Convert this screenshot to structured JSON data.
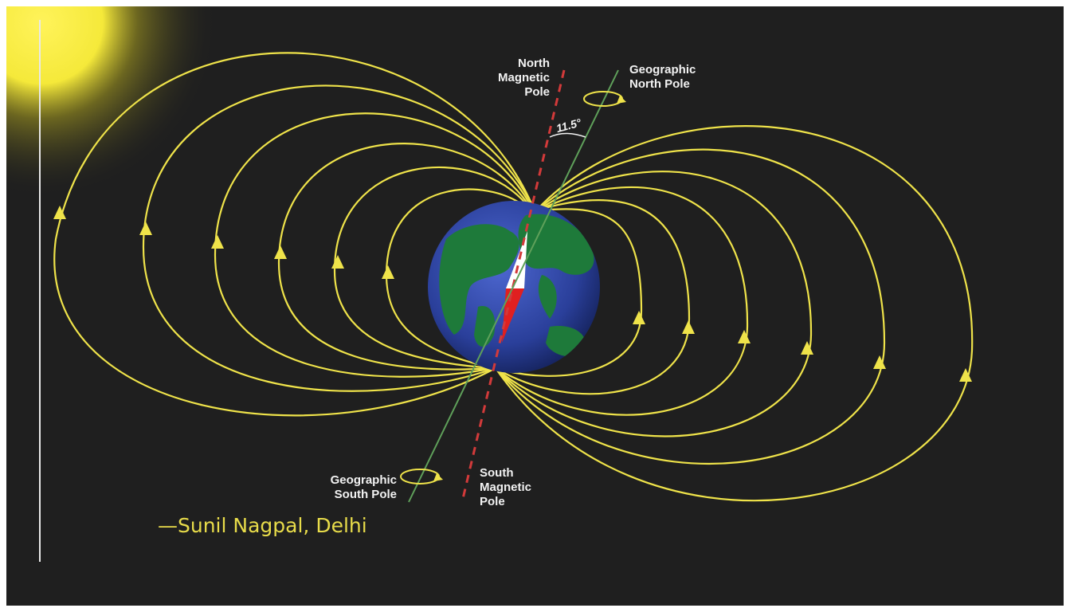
{
  "labels": {
    "north_magnetic": [
      "North",
      "Magnetic",
      "Pole"
    ],
    "geographic_north": [
      "Geographic",
      "North Pole"
    ],
    "geographic_south": [
      "Geographic",
      "South Pole"
    ],
    "south_magnetic": [
      "South",
      "Magnetic",
      "Pole"
    ],
    "angle": "11.5°",
    "credit": "—Sunil Nagpal, Delhi"
  },
  "colors": {
    "background": "#1f1f1f",
    "field_lines": "#efe34a",
    "ocean": "#2a3f9a",
    "land": "#1e7a3a",
    "magnetic_axis": "#d23a3a",
    "geographic_axis": "#5fa05a",
    "sun": "#fff35a"
  }
}
